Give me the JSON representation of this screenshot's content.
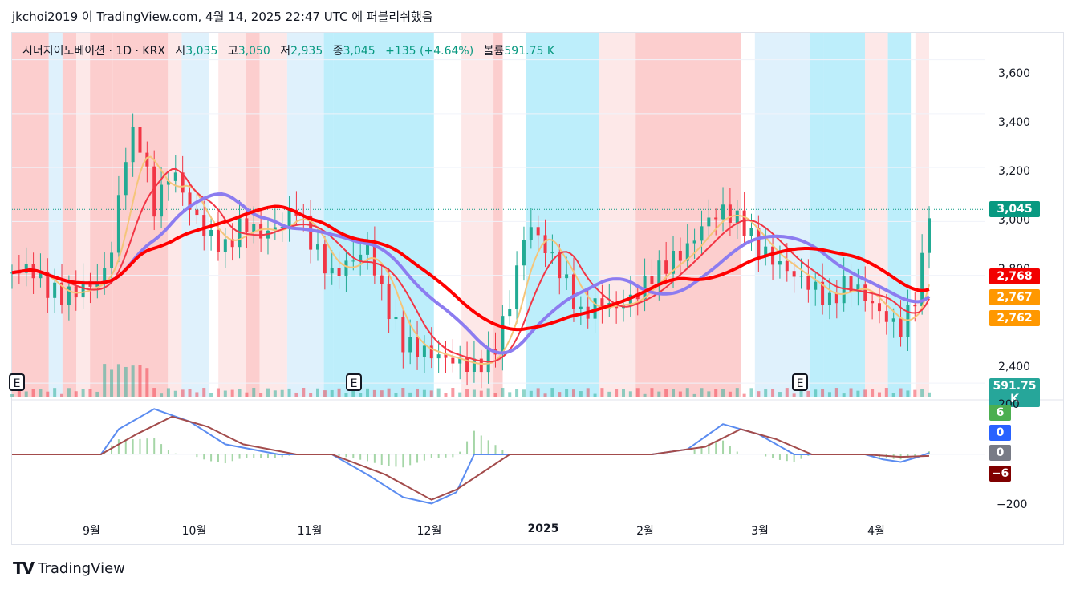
{
  "header": {
    "publish_text": "jkchoi2019 이 TradingView.com, 4월 14, 2025 22:47 UTC 에 퍼블리쉬했음"
  },
  "legend": {
    "symbol": "시너지이노베이션 · 1D · KRX",
    "open_label": "시",
    "open": "3,035",
    "high_label": "고",
    "high": "3,050",
    "low_label": "저",
    "low": "2,935",
    "close_label": "종",
    "close": "3,045",
    "change": "+135 (+4.64%)",
    "volume_label": "볼륨",
    "volume": "591.75 K"
  },
  "price_axis": {
    "ticks": [
      "3,600",
      "3,400",
      "3,200",
      "3,000",
      "2,800",
      "2,400"
    ],
    "last_price": "3,045",
    "ma_labels": [
      "2,768",
      "2,767",
      "2,762"
    ],
    "volume_label": "591.75 K"
  },
  "indicator_axis": {
    "ticks": [
      "200",
      "−200"
    ],
    "labels": [
      "6",
      "0",
      "0",
      "−6"
    ]
  },
  "time_axis": {
    "ticks": [
      "9월",
      "10월",
      "11월",
      "12월",
      "2025",
      "2월",
      "3월",
      "4월"
    ]
  },
  "earnings_marker": "E",
  "footer": {
    "logo": "TV",
    "brand": "TradingView"
  },
  "colors": {
    "up": "#22ab94",
    "down": "#f23645",
    "ma_short": "#f23645",
    "ma_long": "#ff0000",
    "ma_purple": "#8c7cf0",
    "ma_orange": "#f5c57a",
    "bg_red": "#fbc6c6",
    "bg_pink": "#fde4e4",
    "bg_cyan": "#b2ebfa",
    "bg_lightblue": "#d9effb",
    "macd_line": "#5b8cf0",
    "signal_line": "#a34c4c"
  },
  "chart_data": {
    "type": "candlestick",
    "symbol": "시너지이노베이션 · 1D · KRX",
    "x_ticks": [
      "9월",
      "10월",
      "11월",
      "12월",
      "2025",
      "2월",
      "3월",
      "4월"
    ],
    "ylim": [
      2350,
      3700
    ],
    "y_ticks": [
      2400,
      2800,
      3000,
      3200,
      3400,
      3600
    ],
    "last": {
      "open": 3035,
      "high": 3050,
      "low": 2935,
      "close": 3045,
      "change": 135,
      "change_pct": 4.64,
      "volume": "591.75K"
    },
    "ma_values": [
      2768,
      2767,
      2762
    ],
    "close_path": [
      [
        0,
        2810
      ],
      [
        5,
        2830
      ],
      [
        10,
        2750
      ],
      [
        15,
        2720
      ],
      [
        20,
        2760
      ],
      [
        25,
        2780
      ],
      [
        28,
        2900
      ],
      [
        32,
        3250
      ],
      [
        35,
        3350
      ],
      [
        40,
        3050
      ],
      [
        45,
        3200
      ],
      [
        50,
        3050
      ],
      [
        55,
        2950
      ],
      [
        60,
        2900
      ],
      [
        65,
        3000
      ],
      [
        70,
        2950
      ],
      [
        75,
        2980
      ],
      [
        80,
        3050
      ],
      [
        85,
        2900
      ],
      [
        90,
        2800
      ],
      [
        95,
        2850
      ],
      [
        100,
        2900
      ],
      [
        105,
        2700
      ],
      [
        110,
        2550
      ],
      [
        115,
        2520
      ],
      [
        120,
        2500
      ],
      [
        125,
        2480
      ],
      [
        130,
        2460
      ],
      [
        135,
        2500
      ],
      [
        140,
        2700
      ],
      [
        145,
        3000
      ],
      [
        150,
        2900
      ],
      [
        155,
        2800
      ],
      [
        160,
        2650
      ],
      [
        165,
        2700
      ],
      [
        170,
        2680
      ],
      [
        175,
        2720
      ],
      [
        180,
        2800
      ],
      [
        185,
        2850
      ],
      [
        190,
        2900
      ],
      [
        195,
        3000
      ],
      [
        200,
        3040
      ],
      [
        205,
        3000
      ],
      [
        210,
        2900
      ],
      [
        215,
        2850
      ],
      [
        220,
        2800
      ],
      [
        225,
        2760
      ],
      [
        230,
        2700
      ],
      [
        235,
        2780
      ],
      [
        240,
        2720
      ],
      [
        245,
        2650
      ],
      [
        250,
        2600
      ],
      [
        255,
        2750
      ],
      [
        258,
        3045
      ]
    ],
    "macd_ylim": [
      -200,
      200
    ],
    "macd_line": [
      [
        0,
        0
      ],
      [
        25,
        0
      ],
      [
        30,
        100
      ],
      [
        40,
        180
      ],
      [
        50,
        130
      ],
      [
        60,
        40
      ],
      [
        75,
        0
      ],
      [
        90,
        0
      ],
      [
        100,
        -80
      ],
      [
        110,
        -170
      ],
      [
        118,
        -195
      ],
      [
        125,
        -150
      ],
      [
        130,
        0
      ],
      [
        160,
        0
      ],
      [
        180,
        0
      ],
      [
        190,
        20
      ],
      [
        200,
        120
      ],
      [
        210,
        80
      ],
      [
        220,
        0
      ],
      [
        240,
        0
      ],
      [
        245,
        -20
      ],
      [
        250,
        -30
      ],
      [
        255,
        -10
      ],
      [
        258,
        6
      ]
    ],
    "signal_line": [
      [
        0,
        0
      ],
      [
        25,
        0
      ],
      [
        35,
        80
      ],
      [
        45,
        150
      ],
      [
        55,
        110
      ],
      [
        65,
        40
      ],
      [
        80,
        0
      ],
      [
        90,
        0
      ],
      [
        105,
        -80
      ],
      [
        118,
        -180
      ],
      [
        125,
        -140
      ],
      [
        140,
        0
      ],
      [
        160,
        0
      ],
      [
        180,
        0
      ],
      [
        195,
        30
      ],
      [
        205,
        100
      ],
      [
        215,
        60
      ],
      [
        225,
        0
      ],
      [
        240,
        0
      ],
      [
        250,
        -10
      ],
      [
        258,
        -6
      ]
    ]
  }
}
